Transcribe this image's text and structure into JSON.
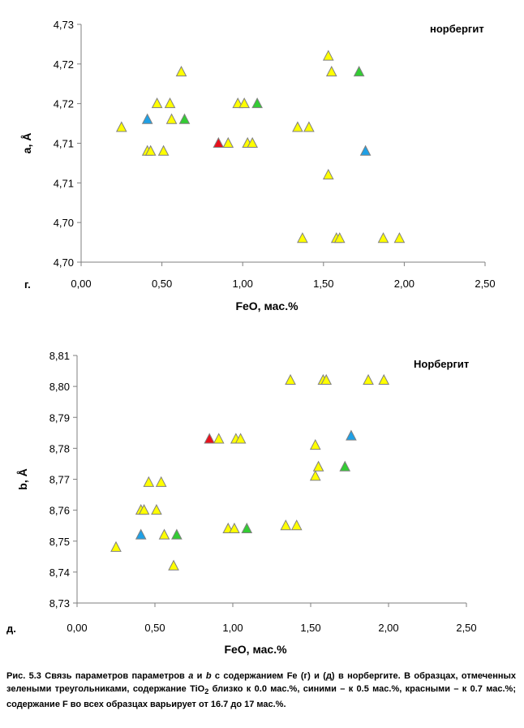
{
  "colors": {
    "yellow": "#ffff00",
    "blue": "#1ea0e6",
    "green": "#33cc33",
    "red": "#e8101c",
    "stroke": "#7f7f7f",
    "axis": "#7f7f7f"
  },
  "chart_data": [
    {
      "type": "scatter",
      "panel_label": "г.",
      "annotation": "норбергит",
      "xlabel": "FeO, мас.%",
      "ylabel": "a, Å",
      "xlim": [
        0,
        2.5
      ],
      "ylim": [
        4.7,
        4.73
      ],
      "x_ticks": [
        0,
        0.5,
        1.0,
        1.5,
        2.0,
        2.5
      ],
      "x_tick_labels": [
        "0,00",
        "0,50",
        "1,00",
        "1,50",
        "2,00",
        "2,50"
      ],
      "y_ticks": [
        4.7,
        4.705,
        4.71,
        4.715,
        4.72,
        4.725,
        4.73
      ],
      "y_tick_labels": [
        "4,70",
        "4,70",
        "4,71",
        "4,71",
        "4,72",
        "4,72",
        "4,73"
      ],
      "grid": false,
      "series": [
        {
          "color": "yellow",
          "points": [
            [
              0.25,
              4.717
            ],
            [
              0.41,
              4.714
            ],
            [
              0.43,
              4.714
            ],
            [
              0.47,
              4.72
            ],
            [
              0.51,
              4.714
            ],
            [
              0.55,
              4.72
            ],
            [
              0.56,
              4.718
            ],
            [
              0.62,
              4.724
            ],
            [
              0.91,
              4.715
            ],
            [
              0.97,
              4.72
            ],
            [
              1.01,
              4.72
            ],
            [
              1.03,
              4.715
            ],
            [
              1.06,
              4.715
            ],
            [
              1.34,
              4.717
            ],
            [
              1.37,
              4.703
            ],
            [
              1.41,
              4.717
            ],
            [
              1.53,
              4.726
            ],
            [
              1.53,
              4.711
            ],
            [
              1.55,
              4.724
            ],
            [
              1.58,
              4.703
            ],
            [
              1.6,
              4.703
            ],
            [
              1.87,
              4.703
            ],
            [
              1.97,
              4.703
            ]
          ]
        },
        {
          "color": "blue",
          "points": [
            [
              0.41,
              4.718
            ],
            [
              1.76,
              4.714
            ]
          ]
        },
        {
          "color": "green",
          "points": [
            [
              0.64,
              4.718
            ],
            [
              1.09,
              4.72
            ],
            [
              1.72,
              4.724
            ]
          ]
        },
        {
          "color": "red",
          "points": [
            [
              0.85,
              4.715
            ]
          ]
        }
      ]
    },
    {
      "type": "scatter",
      "panel_label": "д.",
      "annotation": "Норбергит",
      "xlabel": "FeO, мас.%",
      "ylabel": "b, Å",
      "xlim": [
        0,
        2.5
      ],
      "ylim": [
        8.73,
        8.81
      ],
      "x_ticks": [
        0,
        0.5,
        1.0,
        1.5,
        2.0,
        2.5
      ],
      "x_tick_labels": [
        "0,00",
        "0,50",
        "1,00",
        "1,50",
        "2,00",
        "2,50"
      ],
      "y_ticks": [
        8.73,
        8.74,
        8.75,
        8.76,
        8.77,
        8.78,
        8.79,
        8.8,
        8.81
      ],
      "y_tick_labels": [
        "8,73",
        "8,74",
        "8,75",
        "8,76",
        "8,77",
        "8,78",
        "8,79",
        "8,80",
        "8,81"
      ],
      "grid": false,
      "series": [
        {
          "color": "yellow",
          "points": [
            [
              0.25,
              8.748
            ],
            [
              0.41,
              8.76
            ],
            [
              0.43,
              8.76
            ],
            [
              0.46,
              8.769
            ],
            [
              0.51,
              8.76
            ],
            [
              0.54,
              8.769
            ],
            [
              0.56,
              8.752
            ],
            [
              0.62,
              8.742
            ],
            [
              0.91,
              8.783
            ],
            [
              0.97,
              8.754
            ],
            [
              1.01,
              8.754
            ],
            [
              1.02,
              8.783
            ],
            [
              1.05,
              8.783
            ],
            [
              1.34,
              8.755
            ],
            [
              1.37,
              8.802
            ],
            [
              1.41,
              8.755
            ],
            [
              1.53,
              8.771
            ],
            [
              1.53,
              8.781
            ],
            [
              1.55,
              8.774
            ],
            [
              1.58,
              8.802
            ],
            [
              1.6,
              8.802
            ],
            [
              1.87,
              8.802
            ],
            [
              1.97,
              8.802
            ]
          ]
        },
        {
          "color": "blue",
          "points": [
            [
              0.41,
              8.752
            ],
            [
              1.76,
              8.784
            ]
          ]
        },
        {
          "color": "green",
          "points": [
            [
              0.64,
              8.752
            ],
            [
              1.09,
              8.754
            ],
            [
              1.72,
              8.774
            ]
          ]
        },
        {
          "color": "red",
          "points": [
            [
              0.85,
              8.783
            ]
          ]
        }
      ]
    }
  ],
  "caption": {
    "part1": "Рис. 5.3 Связь параметров параметров ",
    "a": "a",
    "part2": " и ",
    "b": "b",
    "part3": " с содержанием Fe  (г) и (д) в норбергите. В образцах, отмеченных зелеными треугольниками, содержание TiO",
    "sub": "2",
    "part4": " близко к 0.0 мас.%, синими – к 0.5 мас.%, красными – к 0.7 мас.%; содержание F во всех образцах варьирует от 16.7 до 17 мас.%."
  }
}
